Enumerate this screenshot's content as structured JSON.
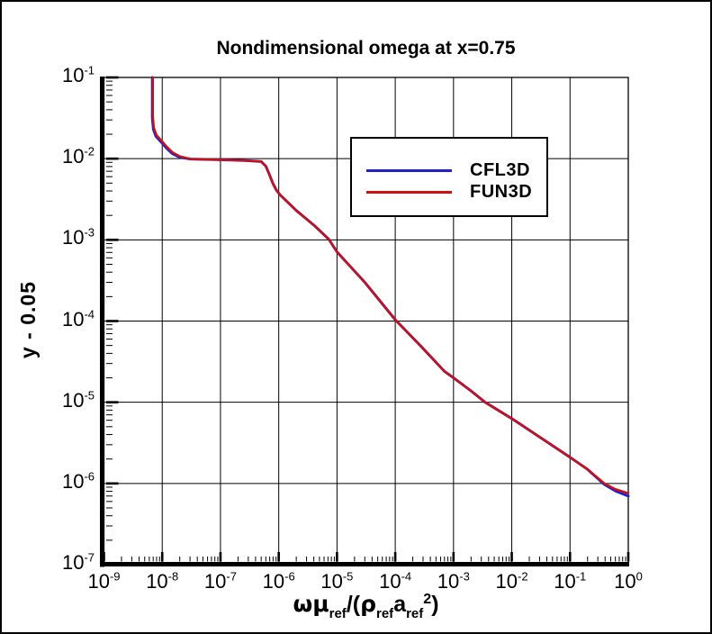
{
  "title": "Nondimensional omega at x=0.75",
  "axes": {
    "x": {
      "base": "10",
      "tick_exponents": [
        -9,
        -8,
        -7,
        -6,
        -5,
        -4,
        -3,
        -2,
        -1,
        0
      ],
      "label_parts": [
        {
          "text": "ω",
          "style": "greek"
        },
        {
          "text": "μ",
          "style": "greek"
        },
        {
          "text": "ref",
          "style": "sub"
        },
        {
          "text": "/(",
          "style": "normal"
        },
        {
          "text": "ρ",
          "style": "greek"
        },
        {
          "text": "ref",
          "style": "sub"
        },
        {
          "text": "a",
          "style": "normal"
        },
        {
          "text": "ref",
          "style": "sub"
        },
        {
          "text": "2",
          "style": "sup"
        },
        {
          "text": ")",
          "style": "normal"
        }
      ]
    },
    "y": {
      "base": "10",
      "tick_exponents": [
        -1,
        -2,
        -3,
        -4,
        -5,
        -6,
        -7
      ],
      "label": "y - 0.05"
    }
  },
  "legend": {
    "items": [
      {
        "label": "CFL3D",
        "color": "#2222CC"
      },
      {
        "label": "FUN3D",
        "color": "#CC1111"
      }
    ]
  },
  "chart_data": {
    "type": "line",
    "title": "Nondimensional omega at x=0.75",
    "xlabel": "omega*mu_ref/(rho_ref*a_ref^2)",
    "ylabel": "y - 0.05",
    "xscale": "log",
    "yscale": "log",
    "xlim": [
      1e-09,
      1.0
    ],
    "ylim": [
      1e-07,
      0.1
    ],
    "grid": true,
    "legend_position": "inside upper-middle",
    "series": [
      {
        "name": "CFL3D",
        "color": "#2222CC",
        "points": [
          [
            6.75e-09,
            0.1
          ],
          [
            6.75e-09,
            0.032
          ],
          [
            7.05e-09,
            0.023
          ],
          [
            7.8e-09,
            0.0188
          ],
          [
            9.8e-09,
            0.0157
          ],
          [
            1.18e-08,
            0.0135
          ],
          [
            1.48e-08,
            0.0116
          ],
          [
            1.98e-08,
            0.0104
          ],
          [
            3.1e-08,
            0.0099
          ],
          [
            1e-07,
            0.0097
          ],
          [
            2.6e-07,
            0.0095
          ],
          [
            5e-07,
            0.0092
          ],
          [
            6e-07,
            0.0081
          ],
          [
            6.9e-07,
            0.0064
          ],
          [
            7.9e-07,
            0.005
          ],
          [
            9.1e-07,
            0.0041
          ],
          [
            1.05e-06,
            0.0036
          ],
          [
            2e-06,
            0.0023
          ],
          [
            4.1e-06,
            0.0015
          ],
          [
            7.2e-06,
            0.00102
          ],
          [
            1e-05,
            0.00071
          ],
          [
            3e-05,
            0.0003
          ],
          [
            0.0001,
            0.000104
          ],
          [
            0.0003,
            4.6e-05
          ],
          [
            0.0007,
            2.4e-05
          ],
          [
            0.001,
            2e-05
          ],
          [
            0.002,
            1.38e-05
          ],
          [
            0.0035,
            1e-05
          ],
          [
            0.01,
            6.3e-06
          ],
          [
            0.029,
            3.8e-06
          ],
          [
            0.1,
            2.1e-06
          ],
          [
            0.2,
            1.49e-06
          ],
          [
            0.39,
            9.7e-07
          ],
          [
            0.6,
            8.1e-07
          ],
          [
            1.0,
            7e-07
          ]
        ]
      },
      {
        "name": "FUN3D",
        "color": "#CC1111",
        "points": [
          [
            6.9e-09,
            0.1
          ],
          [
            6.9e-09,
            0.033
          ],
          [
            7.2e-09,
            0.024
          ],
          [
            8e-09,
            0.0195
          ],
          [
            1e-08,
            0.0163
          ],
          [
            1.2e-08,
            0.014
          ],
          [
            1.5e-08,
            0.012
          ],
          [
            2e-08,
            0.0107
          ],
          [
            3.1e-08,
            0.0099
          ],
          [
            1e-07,
            0.0097
          ],
          [
            2.6e-07,
            0.0095
          ],
          [
            5e-07,
            0.0092
          ],
          [
            6e-07,
            0.0081
          ],
          [
            6.9e-07,
            0.0064
          ],
          [
            7.9e-07,
            0.005
          ],
          [
            9.1e-07,
            0.0041
          ],
          [
            1.05e-06,
            0.0036
          ],
          [
            2e-06,
            0.0023
          ],
          [
            4.1e-06,
            0.0015
          ],
          [
            7.2e-06,
            0.00102
          ],
          [
            1e-05,
            0.00071
          ],
          [
            3e-05,
            0.0003
          ],
          [
            0.0001,
            0.000104
          ],
          [
            0.0003,
            4.6e-05
          ],
          [
            0.0007,
            2.4e-05
          ],
          [
            0.001,
            2e-05
          ],
          [
            0.002,
            1.38e-05
          ],
          [
            0.0035,
            1e-05
          ],
          [
            0.01,
            6.3e-06
          ],
          [
            0.029,
            3.8e-06
          ],
          [
            0.1,
            2.1e-06
          ],
          [
            0.2,
            1.49e-06
          ],
          [
            0.39,
            1e-06
          ],
          [
            0.6,
            8.5e-07
          ],
          [
            1.0,
            7.6e-07
          ]
        ]
      }
    ]
  }
}
